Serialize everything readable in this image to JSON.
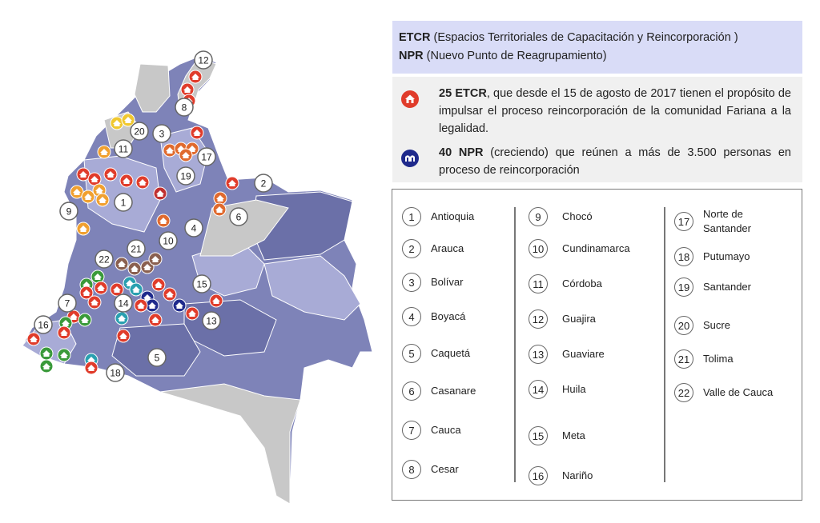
{
  "legend": {
    "etcr_abbr": "ETCR",
    "etcr_full": " (Espacios Territoriales de Capacitación y Reincorporación )",
    "npr_abbr": "NPR",
    "npr_full": " (Nuevo Punto de Reagrupamiento)"
  },
  "info": {
    "etcr_bold": "25 ETCR",
    "etcr_text": ", que desde el 15 de agosto de 2017 tienen el propósito de impulsar el proceso reincorporación de la comunidad Fariana a la legalidad.",
    "npr_bold": "40 NPR",
    "npr_text": " (creciendo) que reúnen a más de 3.500 personas en proceso de reincorporación"
  },
  "departments": [
    {
      "num": "1",
      "name": "Antioquia"
    },
    {
      "num": "2",
      "name": "Arauca"
    },
    {
      "num": "3",
      "name": "Bolívar"
    },
    {
      "num": "4",
      "name": "Boyacá"
    },
    {
      "num": "5",
      "name": "Caquetá"
    },
    {
      "num": "6",
      "name": "Casanare"
    },
    {
      "num": "7",
      "name": "Cauca"
    },
    {
      "num": "8",
      "name": "Cesar"
    },
    {
      "num": "9",
      "name": "Chocó"
    },
    {
      "num": "10",
      "name": "Cundinamarca"
    },
    {
      "num": "11",
      "name": "Córdoba"
    },
    {
      "num": "12",
      "name": "Guajira"
    },
    {
      "num": "13",
      "name": "Guaviare"
    },
    {
      "num": "14",
      "name": "Huila"
    },
    {
      "num": "15",
      "name": "Meta"
    },
    {
      "num": "16",
      "name": "Nariño"
    },
    {
      "num": "17",
      "name": "Norte de Santander"
    },
    {
      "num": "18",
      "name": "Putumayo"
    },
    {
      "num": "19",
      "name": "Santander"
    },
    {
      "num": "20",
      "name": "Sucre"
    },
    {
      "num": "21",
      "name": "Tolima"
    },
    {
      "num": "22",
      "name": "Valle de Cauca"
    }
  ],
  "map_labels": [
    "1",
    "2",
    "3",
    "4",
    "5",
    "6",
    "7",
    "8",
    "9",
    "10",
    "11",
    "12",
    "13",
    "14",
    "15",
    "16",
    "17",
    "18",
    "19",
    "20",
    "21",
    "22"
  ],
  "colors": {
    "etcr_marker": "#e03c2b",
    "npr_marker": "#1f2a8c",
    "region_dark": "#6b70a8",
    "region_mid": "#8589bd",
    "region_light": "#a8abd6",
    "region_gray": "#c8c8c8",
    "legend_bg": "#d9dcf7"
  }
}
